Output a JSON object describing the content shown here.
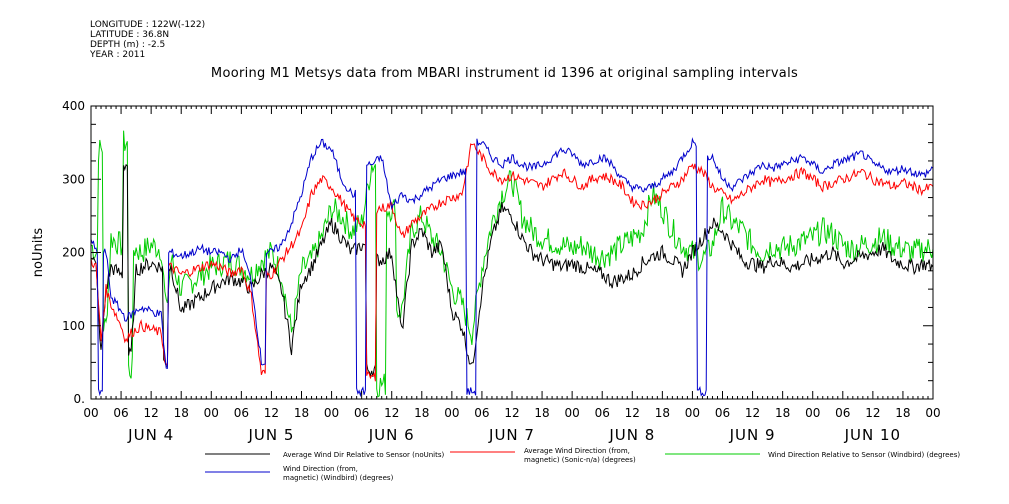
{
  "header": {
    "lines": [
      "LONGITUDE : 122W(-122)",
      "LATITUDE : 36.8N",
      "DEPTH (m) : -2.5",
      "YEAR : 2011"
    ]
  },
  "chart_data": {
    "type": "line",
    "title": "Mooring M1 Metsys data from MBARI instrument id 1396 at original sampling intervals",
    "ylabel": "noUnits",
    "xlabel": "",
    "ylim": [
      0,
      400
    ],
    "yticks": [
      0,
      100,
      200,
      300,
      400
    ],
    "ytick_labels": [
      "0.",
      "100",
      "200",
      "300",
      "400"
    ],
    "xlim_hours": [
      0,
      168
    ],
    "xtick_labels": [
      "00",
      "06",
      "12",
      "18",
      "00",
      "06",
      "12",
      "18",
      "00",
      "06",
      "12",
      "18",
      "00",
      "06",
      "12",
      "18",
      "00",
      "06",
      "12",
      "18",
      "00",
      "06",
      "12",
      "18",
      "00",
      "06",
      "12",
      "18",
      "00"
    ],
    "day_labels": [
      "JUN  4",
      "JUN  5",
      "JUN  6",
      "JUN  7",
      "JUN  8",
      "JUN  9",
      "JUN  10"
    ],
    "grid": false,
    "legend": "bottom",
    "series": [
      {
        "name": "Average Wind Dir Relative to Sensor (noUnits)",
        "color": "#000000",
        "x": [
          0,
          1,
          2,
          3,
          4,
          6,
          7,
          8,
          9,
          10,
          12,
          14,
          15,
          16,
          18,
          20,
          22,
          24,
          26,
          28,
          30,
          32,
          34,
          36,
          38,
          40,
          42,
          44,
          46,
          48,
          50,
          52,
          54,
          56,
          58,
          60,
          62,
          64,
          66,
          68,
          70,
          72,
          74,
          76,
          78,
          80,
          82,
          84,
          86,
          88,
          90,
          92,
          94,
          96,
          98,
          100,
          102,
          104,
          106,
          108,
          110,
          112,
          114,
          116,
          118,
          120,
          122,
          124,
          126,
          128,
          130,
          132,
          134,
          136,
          138,
          140,
          142,
          144,
          146,
          148,
          150,
          152,
          154,
          156,
          158,
          160,
          162,
          164,
          166,
          168
        ],
        "y": [
          200,
          180,
          60,
          150,
          180,
          170,
          320,
          60,
          175,
          180,
          185,
          180,
          50,
          180,
          120,
          130,
          140,
          150,
          160,
          165,
          160,
          150,
          170,
          180,
          150,
          70,
          160,
          180,
          210,
          240,
          220,
          200,
          210,
          40,
          190,
          200,
          90,
          210,
          230,
          200,
          210,
          120,
          100,
          40,
          150,
          220,
          260,
          250,
          220,
          200,
          190,
          185,
          180,
          185,
          180,
          175,
          170,
          160,
          165,
          170,
          185,
          195,
          200,
          190,
          175,
          200,
          220,
          240,
          230,
          210,
          190,
          185,
          180,
          190,
          185,
          180,
          185,
          190,
          195,
          200,
          185,
          190,
          195,
          200,
          205,
          190,
          185,
          180,
          185,
          180
        ]
      },
      {
        "name": "Average Wind Direction (from, magnetic) (Sonic-n/a) (degrees)",
        "color": "#ff0000",
        "x": [
          0,
          1,
          2,
          3,
          4,
          6,
          7,
          8,
          9,
          10,
          12,
          14,
          15,
          16,
          18,
          20,
          22,
          24,
          26,
          28,
          30,
          32,
          34,
          36,
          38,
          40,
          42,
          44,
          46,
          48,
          50,
          52,
          54,
          56,
          58,
          60,
          62,
          64,
          66,
          68,
          70,
          72,
          74,
          76,
          78,
          80,
          82,
          84,
          86,
          88,
          90,
          92,
          94,
          96,
          98,
          100,
          102,
          104,
          106,
          108,
          110,
          112,
          114,
          116,
          118,
          120,
          122,
          124,
          126,
          128,
          130,
          132,
          134,
          136,
          138,
          140,
          142,
          144,
          146,
          148,
          150,
          152,
          154,
          156,
          158,
          160,
          162,
          164,
          166,
          168
        ],
        "y": [
          190,
          180,
          80,
          150,
          130,
          100,
          80,
          90,
          95,
          100,
          95,
          90,
          45,
          180,
          170,
          175,
          180,
          185,
          180,
          170,
          180,
          140,
          35,
          170,
          190,
          210,
          230,
          280,
          300,
          290,
          270,
          250,
          240,
          30,
          260,
          265,
          220,
          240,
          250,
          260,
          270,
          275,
          280,
          350,
          330,
          310,
          300,
          305,
          300,
          295,
          290,
          300,
          310,
          300,
          290,
          300,
          305,
          300,
          290,
          270,
          265,
          270,
          280,
          290,
          300,
          320,
          310,
          290,
          280,
          270,
          280,
          290,
          300,
          295,
          300,
          305,
          310,
          300,
          290,
          295,
          300,
          305,
          310,
          300,
          295,
          290,
          295,
          290,
          285,
          290
        ]
      },
      {
        "name": "Wind Direction Relative to Sensor (Windbird) (degrees)",
        "color": "#00cc00",
        "x": [
          0,
          1,
          2,
          3,
          4,
          6,
          7,
          8,
          9,
          10,
          12,
          14,
          15,
          16,
          18,
          20,
          22,
          24,
          26,
          28,
          30,
          32,
          34,
          36,
          38,
          40,
          42,
          44,
          46,
          48,
          50,
          52,
          54,
          56,
          58,
          60,
          62,
          64,
          66,
          68,
          70,
          72,
          74,
          76,
          78,
          80,
          82,
          84,
          86,
          88,
          90,
          92,
          94,
          96,
          98,
          100,
          102,
          104,
          106,
          108,
          110,
          112,
          114,
          116,
          118,
          120,
          122,
          124,
          126,
          128,
          130,
          132,
          134,
          136,
          138,
          140,
          142,
          144,
          146,
          148,
          150,
          152,
          154,
          156,
          158,
          160,
          162,
          164,
          166,
          168
        ],
        "y": [
          210,
          200,
          340,
          100,
          220,
          210,
          350,
          40,
          205,
          200,
          210,
          205,
          120,
          190,
          150,
          160,
          170,
          180,
          185,
          190,
          180,
          170,
          190,
          200,
          170,
          90,
          175,
          190,
          220,
          260,
          250,
          230,
          240,
          320,
          20,
          260,
          120,
          230,
          250,
          220,
          200,
          150,
          130,
          90,
          180,
          240,
          280,
          300,
          250,
          230,
          220,
          215,
          210,
          205,
          210,
          200,
          195,
          200,
          210,
          220,
          230,
          280,
          260,
          230,
          210,
          200,
          190,
          210,
          260,
          240,
          230,
          210,
          200,
          210,
          205,
          210,
          215,
          220,
          230,
          225,
          210,
          205,
          210,
          215,
          220,
          210,
          205,
          200,
          205,
          205
        ]
      },
      {
        "name": "Wind Direction (from, magnetic) (Windbird) (degrees)",
        "color": "#0000cc",
        "x": [
          0,
          1,
          2,
          3,
          4,
          6,
          7,
          8,
          9,
          10,
          12,
          14,
          15,
          16,
          18,
          20,
          22,
          24,
          26,
          28,
          30,
          32,
          34,
          36,
          38,
          40,
          42,
          44,
          46,
          48,
          50,
          52,
          54,
          56,
          58,
          60,
          62,
          64,
          66,
          68,
          70,
          72,
          74,
          76,
          78,
          80,
          82,
          84,
          86,
          88,
          90,
          92,
          94,
          96,
          98,
          100,
          102,
          104,
          106,
          108,
          110,
          112,
          114,
          116,
          118,
          120,
          122,
          124,
          126,
          128,
          130,
          132,
          134,
          136,
          138,
          140,
          142,
          144,
          146,
          148,
          150,
          152,
          154,
          156,
          158,
          160,
          162,
          164,
          166,
          168
        ],
        "y": [
          220,
          200,
          10,
          200,
          140,
          120,
          110,
          115,
          120,
          125,
          120,
          115,
          40,
          200,
          195,
          200,
          205,
          200,
          200,
          190,
          205,
          160,
          50,
          200,
          210,
          240,
          280,
          330,
          350,
          340,
          300,
          280,
          10,
          320,
          330,
          260,
          280,
          270,
          280,
          290,
          300,
          305,
          310,
          10,
          350,
          330,
          320,
          330,
          320,
          315,
          320,
          330,
          340,
          335,
          320,
          325,
          330,
          320,
          300,
          290,
          285,
          290,
          300,
          310,
          330,
          350,
          10,
          330,
          300,
          290,
          300,
          310,
          320,
          315,
          320,
          325,
          330,
          320,
          310,
          320,
          325,
          330,
          335,
          320,
          315,
          310,
          315,
          310,
          305,
          315
        ]
      }
    ]
  }
}
